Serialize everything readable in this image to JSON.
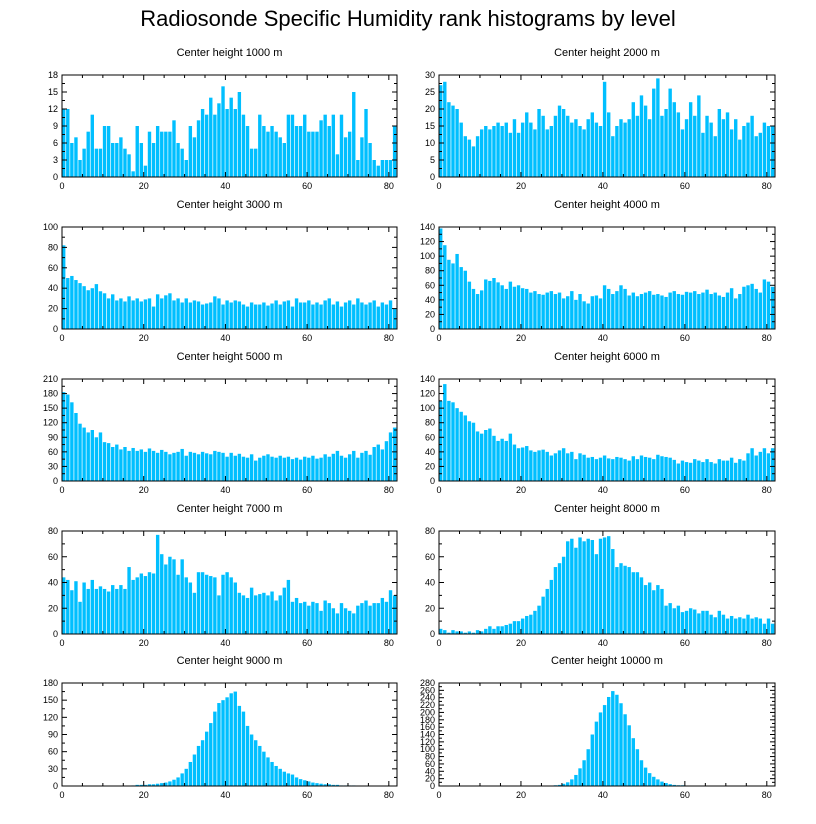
{
  "title": "Radiosonde Specific Humidity rank histograms by level",
  "colors": {
    "bar": "#00bfff",
    "axis": "#000000",
    "background": "#ffffff"
  },
  "chart_data": [
    {
      "type": "bar",
      "title": "Center height 1000 m",
      "xlim": [
        0,
        82
      ],
      "ylim": [
        0,
        18
      ],
      "xticks": [
        0,
        20,
        40,
        60,
        80
      ],
      "yticks": [
        0,
        3,
        6,
        9,
        12,
        15,
        18
      ],
      "values": [
        12,
        12,
        6,
        7,
        3,
        5,
        8,
        11,
        5,
        5,
        9,
        9,
        6,
        6,
        7,
        5,
        4,
        1,
        9,
        6,
        2,
        8,
        6,
        9,
        8,
        8,
        8,
        10,
        6,
        5,
        3,
        9,
        7,
        10,
        12,
        11,
        14,
        11,
        13,
        16,
        12,
        14,
        12,
        15,
        11,
        9,
        5,
        5,
        11,
        9,
        8,
        9,
        8,
        7,
        6,
        11,
        11,
        9,
        9,
        11,
        8,
        8,
        8,
        10,
        11,
        9,
        11,
        4,
        11,
        7,
        8,
        15,
        3,
        7,
        12,
        6,
        3,
        2,
        3,
        3,
        3,
        9
      ]
    },
    {
      "type": "bar",
      "title": "Center height 2000 m",
      "xlim": [
        0,
        82
      ],
      "ylim": [
        0,
        30
      ],
      "xticks": [
        0,
        20,
        40,
        60,
        80
      ],
      "yticks": [
        0,
        5,
        10,
        15,
        20,
        25,
        30
      ],
      "values": [
        27,
        28,
        22,
        21,
        20,
        16,
        12,
        11,
        9,
        12,
        14,
        15,
        14,
        15,
        16,
        15,
        16,
        13,
        17,
        13,
        16,
        19,
        16,
        14,
        20,
        18,
        14,
        15,
        18,
        21,
        20,
        18,
        16,
        17,
        15,
        14,
        17,
        19,
        16,
        15,
        28,
        19,
        12,
        15,
        17,
        16,
        17,
        22,
        18,
        24,
        21,
        17,
        26,
        29,
        18,
        20,
        26,
        22,
        19,
        14,
        17,
        22,
        18,
        24,
        13,
        18,
        16,
        12,
        20,
        17,
        19,
        14,
        17,
        11,
        15,
        16,
        18,
        12,
        13,
        16,
        15,
        15
      ]
    },
    {
      "type": "bar",
      "title": "Center height 3000 m",
      "xlim": [
        0,
        82
      ],
      "ylim": [
        0,
        100
      ],
      "xticks": [
        0,
        20,
        40,
        60,
        80
      ],
      "yticks": [
        0,
        20,
        40,
        60,
        80,
        100
      ],
      "values": [
        82,
        50,
        52,
        48,
        45,
        42,
        38,
        40,
        44,
        37,
        35,
        30,
        34,
        28,
        30,
        27,
        32,
        28,
        30,
        27,
        29,
        30,
        22,
        34,
        30,
        33,
        35,
        28,
        30,
        26,
        30,
        26,
        28,
        27,
        24,
        25,
        26,
        32,
        30,
        24,
        28,
        26,
        28,
        27,
        24,
        22,
        26,
        24,
        24,
        26,
        23,
        25,
        28,
        24,
        27,
        28,
        22,
        30,
        26,
        26,
        28,
        24,
        26,
        24,
        28,
        30,
        24,
        27,
        22,
        26,
        28,
        24,
        30,
        26,
        24,
        26,
        28,
        22,
        26,
        24,
        28,
        20
      ]
    },
    {
      "type": "bar",
      "title": "Center height 4000 m",
      "xlim": [
        0,
        82
      ],
      "ylim": [
        0,
        140
      ],
      "xticks": [
        0,
        20,
        40,
        60,
        80
      ],
      "yticks": [
        0,
        20,
        40,
        60,
        80,
        100,
        120,
        140
      ],
      "values": [
        138,
        115,
        95,
        90,
        103,
        85,
        80,
        65,
        55,
        48,
        53,
        68,
        66,
        70,
        64,
        60,
        55,
        65,
        58,
        60,
        56,
        55,
        50,
        52,
        48,
        47,
        50,
        52,
        48,
        50,
        42,
        45,
        52,
        40,
        48,
        38,
        35,
        45,
        46,
        42,
        60,
        55,
        48,
        52,
        60,
        55,
        46,
        50,
        45,
        48,
        50,
        52,
        47,
        48,
        46,
        44,
        50,
        52,
        48,
        47,
        51,
        50,
        52,
        48,
        50,
        54,
        48,
        50,
        46,
        44,
        50,
        56,
        42,
        48,
        58,
        60,
        62,
        55,
        50,
        68,
        65,
        58
      ]
    },
    {
      "type": "bar",
      "title": "Center height 5000 m",
      "xlim": [
        0,
        82
      ],
      "ylim": [
        0,
        210
      ],
      "xticks": [
        0,
        20,
        40,
        60,
        80
      ],
      "yticks": [
        0,
        30,
        60,
        90,
        120,
        150,
        180,
        210
      ],
      "values": [
        183,
        178,
        162,
        140,
        118,
        110,
        100,
        105,
        90,
        100,
        80,
        78,
        70,
        75,
        65,
        70,
        62,
        68,
        62,
        65,
        60,
        67,
        62,
        58,
        64,
        60,
        55,
        58,
        60,
        66,
        52,
        60,
        58,
        55,
        60,
        57,
        55,
        62,
        60,
        58,
        50,
        58,
        52,
        56,
        50,
        48,
        55,
        42,
        48,
        52,
        55,
        50,
        48,
        52,
        48,
        50,
        45,
        48,
        44,
        50,
        48,
        52,
        46,
        48,
        55,
        50,
        56,
        62,
        52,
        48,
        55,
        62,
        48,
        58,
        62,
        54,
        70,
        75,
        65,
        82,
        100,
        110
      ]
    },
    {
      "type": "bar",
      "title": "Center height 6000 m",
      "xlim": [
        0,
        82
      ],
      "ylim": [
        0,
        140
      ],
      "xticks": [
        0,
        20,
        40,
        60,
        80
      ],
      "yticks": [
        0,
        20,
        40,
        60,
        80,
        100,
        120,
        140
      ],
      "values": [
        110,
        133,
        110,
        108,
        100,
        95,
        90,
        82,
        80,
        68,
        65,
        70,
        72,
        62,
        55,
        58,
        55,
        65,
        50,
        45,
        46,
        48,
        42,
        40,
        42,
        43,
        40,
        35,
        38,
        42,
        45,
        38,
        40,
        30,
        38,
        36,
        32,
        33,
        30,
        32,
        35,
        31,
        30,
        33,
        32,
        30,
        28,
        34,
        30,
        35,
        33,
        32,
        30,
        36,
        34,
        33,
        32,
        29,
        24,
        28,
        26,
        25,
        30,
        28,
        26,
        30,
        26,
        24,
        30,
        28,
        28,
        32,
        25,
        30,
        28,
        38,
        45,
        35,
        40,
        45,
        38,
        45
      ]
    },
    {
      "type": "bar",
      "title": "Center height 7000 m",
      "xlim": [
        0,
        82
      ],
      "ylim": [
        0,
        80
      ],
      "xticks": [
        0,
        20,
        40,
        60,
        80
      ],
      "yticks": [
        0,
        20,
        40,
        60,
        80
      ],
      "values": [
        44,
        42,
        34,
        41,
        25,
        40,
        35,
        42,
        35,
        37,
        35,
        33,
        38,
        35,
        38,
        35,
        52,
        42,
        44,
        47,
        45,
        48,
        47,
        77,
        62,
        54,
        60,
        58,
        46,
        58,
        44,
        40,
        32,
        48,
        48,
        46,
        45,
        44,
        30,
        46,
        48,
        44,
        40,
        32,
        30,
        28,
        36,
        30,
        31,
        32,
        30,
        33,
        26,
        30,
        36,
        42,
        25,
        28,
        24,
        25,
        22,
        25,
        24,
        18,
        26,
        24,
        20,
        16,
        24,
        20,
        18,
        16,
        22,
        24,
        26,
        22,
        24,
        24,
        28,
        25,
        34,
        30
      ]
    },
    {
      "type": "bar",
      "title": "Center height 8000 m",
      "xlim": [
        0,
        82
      ],
      "ylim": [
        0,
        80
      ],
      "xticks": [
        0,
        20,
        40,
        60,
        80
      ],
      "yticks": [
        0,
        20,
        40,
        60,
        80
      ],
      "values": [
        4,
        3,
        1,
        3,
        2,
        2,
        1,
        2,
        1,
        3,
        2,
        4,
        6,
        4,
        6,
        6,
        7,
        8,
        10,
        10,
        12,
        14,
        15,
        18,
        22,
        29,
        35,
        42,
        52,
        55,
        60,
        72,
        74,
        67,
        75,
        72,
        74,
        73,
        62,
        74,
        75,
        76,
        66,
        52,
        55,
        53,
        52,
        48,
        48,
        44,
        38,
        40,
        34,
        38,
        35,
        22,
        24,
        20,
        22,
        17,
        18,
        20,
        19,
        16,
        18,
        18,
        15,
        13,
        18,
        15,
        12,
        14,
        12,
        13,
        12,
        15,
        12,
        13,
        12,
        8,
        12,
        8
      ]
    },
    {
      "type": "bar",
      "title": "Center height 9000 m",
      "xlim": [
        0,
        82
      ],
      "ylim": [
        0,
        180
      ],
      "xticks": [
        0,
        20,
        40,
        60,
        80
      ],
      "yticks": [
        0,
        30,
        60,
        90,
        120,
        150,
        180
      ],
      "values": [
        0,
        0,
        0,
        0,
        0,
        0,
        0,
        0,
        0,
        0,
        0,
        0,
        0,
        0,
        0,
        0,
        0,
        1,
        2,
        2,
        2,
        3,
        3,
        4,
        5,
        6,
        8,
        11,
        15,
        22,
        30,
        42,
        55,
        70,
        80,
        95,
        110,
        130,
        145,
        150,
        155,
        162,
        165,
        140,
        130,
        105,
        90,
        80,
        70,
        60,
        50,
        42,
        35,
        30,
        25,
        22,
        20,
        15,
        12,
        10,
        8,
        6,
        5,
        4,
        3,
        3,
        2,
        2,
        1,
        1,
        1,
        1,
        0,
        0,
        0,
        0,
        0,
        0,
        0,
        0,
        0,
        0
      ]
    },
    {
      "type": "bar",
      "title": "Center height 10000 m",
      "xlim": [
        0,
        82
      ],
      "ylim": [
        0,
        280
      ],
      "xticks": [
        0,
        20,
        40,
        60,
        80
      ],
      "yticks": [
        0,
        20,
        40,
        60,
        80,
        100,
        120,
        140,
        160,
        180,
        200,
        220,
        240,
        260,
        280
      ],
      "values": [
        0,
        0,
        0,
        0,
        0,
        0,
        0,
        0,
        0,
        0,
        0,
        0,
        0,
        0,
        0,
        0,
        0,
        0,
        0,
        0,
        0,
        0,
        0,
        0,
        0,
        0,
        0,
        1,
        2,
        3,
        6,
        10,
        18,
        30,
        48,
        70,
        100,
        140,
        175,
        200,
        220,
        242,
        258,
        248,
        225,
        195,
        165,
        130,
        100,
        70,
        50,
        35,
        25,
        18,
        12,
        8,
        5,
        3,
        2,
        2,
        1,
        1,
        0,
        0,
        0,
        0,
        0,
        0,
        0,
        0,
        0,
        0,
        0,
        0,
        0,
        0,
        0,
        0,
        0,
        0,
        0,
        0
      ]
    }
  ]
}
